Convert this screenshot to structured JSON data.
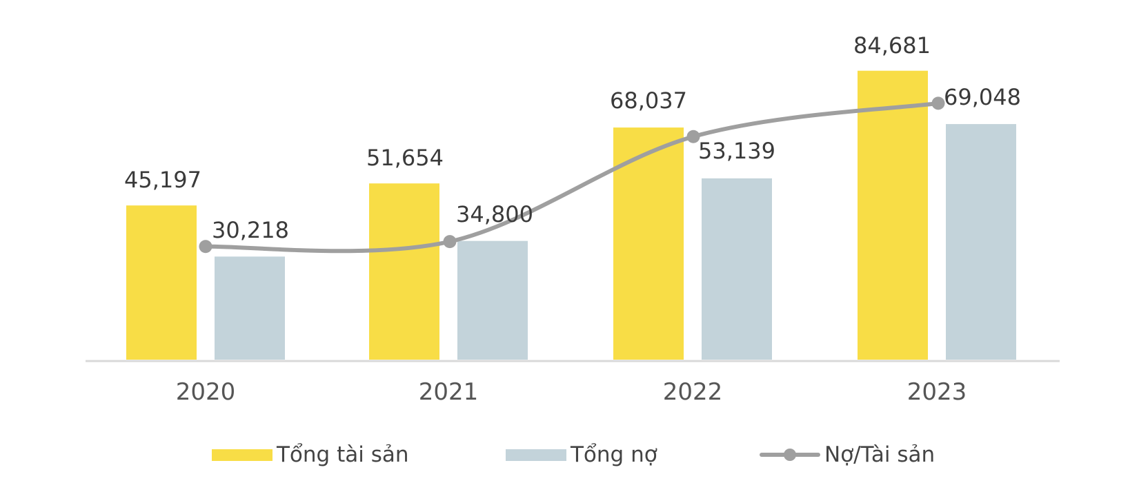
{
  "chart_data": {
    "type": "bar",
    "categories": [
      "2020",
      "2021",
      "2022",
      "2023"
    ],
    "series": [
      {
        "name": "Tổng tài sản",
        "type": "bar",
        "color": "#F8DD46",
        "values": [
          45197,
          51654,
          68037,
          84681
        ],
        "labels": [
          "45,197",
          "51,654",
          "68,037",
          "84,681"
        ]
      },
      {
        "name": "Tổng nợ",
        "type": "bar",
        "color": "#C3D3DA",
        "values": [
          30218,
          34800,
          53139,
          69048
        ],
        "labels": [
          "30,218",
          "34,800",
          "53,139",
          "69,048"
        ]
      },
      {
        "name": "Nợ/Tài sản",
        "type": "line",
        "color": "#9F9F9F",
        "values": [
          0.669,
          0.674,
          0.781,
          0.815
        ]
      }
    ],
    "ylim": [
      0,
      90000
    ],
    "grid": false,
    "legend": "bottom"
  }
}
